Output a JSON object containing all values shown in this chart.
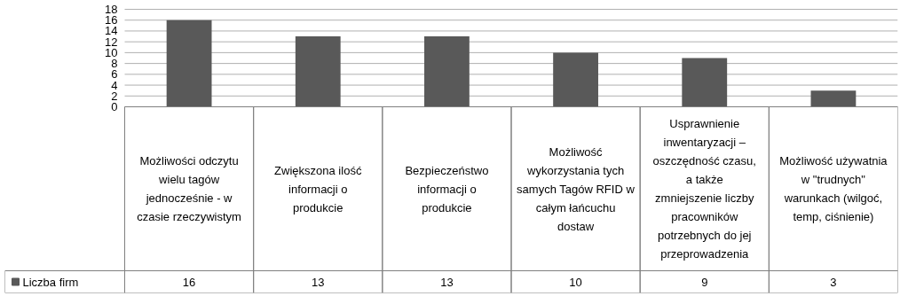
{
  "chart_data": {
    "type": "bar",
    "categories": [
      "Możliwości odczytu wielu tagów jednocześnie - w czasie rzeczywistym",
      "Zwiększona ilość informacji o produkcie",
      "Bezpieczeństwo informacji o produkcie",
      "Możliwość wykorzystania tych samych Tagów RFID w całym łańcuchu dostaw",
      "Usprawnienie inwentaryzacji – oszczędność czasu, a także zmniejszenie liczby pracowników potrzebnych do jej przeprowadzenia",
      "Możliwość używatnia w \"trudnych\" warunkach (wilgoć, temp, ciśnienie)"
    ],
    "series": [
      {
        "name": "Liczba firm",
        "color": "#595959",
        "values": [
          16,
          13,
          13,
          10,
          9,
          3
        ]
      }
    ],
    "ylim": [
      0,
      18
    ],
    "yticks": [
      0,
      2,
      4,
      6,
      8,
      10,
      12,
      14,
      16,
      18
    ],
    "grid": "y",
    "data_labels": true,
    "legend": "bottom left"
  }
}
